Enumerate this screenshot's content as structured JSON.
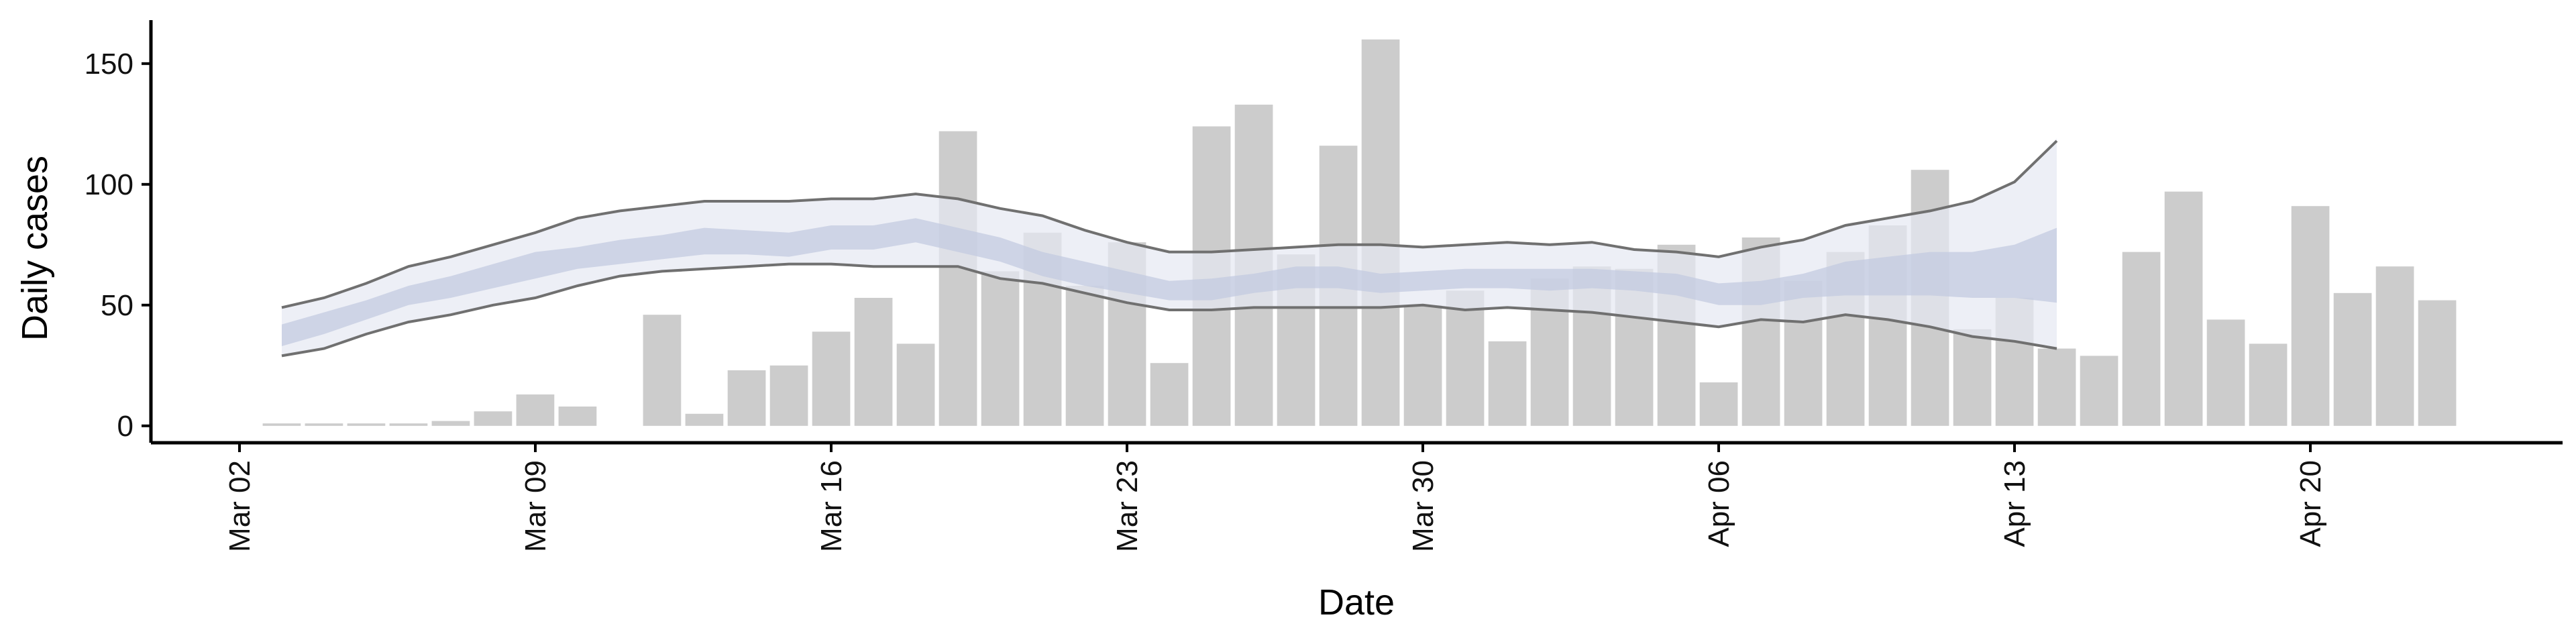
{
  "chart_data": {
    "type": "bar",
    "xlabel": "Date",
    "ylabel": "Daily cases",
    "ylim": [
      -7,
      168
    ],
    "x_ticks": [
      "2020-03-02",
      "2020-03-09",
      "2020-03-16",
      "2020-03-23",
      "2020-03-30",
      "2020-04-06",
      "2020-04-13",
      "2020-04-20"
    ],
    "x_tick_labels": [
      "Mar 02",
      "Mar 09",
      "Mar 16",
      "Mar 23",
      "Mar 30",
      "Apr 06",
      "Apr 13",
      "Apr 20"
    ],
    "y_ticks": [
      0,
      50,
      100,
      150
    ],
    "y_tick_labels": [
      "0",
      "50",
      "100",
      "150"
    ],
    "grid": false,
    "colors": {
      "bars": "#cccccc",
      "outer_band": "#e6e8f2",
      "inner_band": "#c3cbe0",
      "bound_lines": "#707070",
      "axis": "#000000"
    },
    "daily_cases": {
      "start_date": "2020-03-03",
      "values": [
        1,
        1,
        1,
        1,
        2,
        6,
        13,
        8,
        0,
        46,
        5,
        23,
        25,
        39,
        53,
        34,
        122,
        64,
        80,
        58,
        76,
        26,
        124,
        133,
        71,
        116,
        160,
        50,
        56,
        35,
        61,
        66,
        65,
        75,
        18,
        78,
        60,
        72,
        83,
        106,
        40,
        53,
        32,
        29,
        72,
        97,
        44,
        34,
        91,
        55,
        66,
        52
      ]
    },
    "estimate_bands": {
      "start_date": "2020-03-03",
      "upper": [
        49,
        53,
        59,
        66,
        70,
        75,
        80,
        86,
        89,
        91,
        93,
        93,
        93,
        94,
        94,
        96,
        94,
        90,
        87,
        81,
        76,
        72,
        72,
        73,
        74,
        75,
        75,
        74,
        75,
        76,
        75,
        76,
        73,
        72,
        70,
        74,
        77,
        83,
        86,
        89,
        93,
        101,
        118
      ],
      "lower": [
        29,
        32,
        38,
        43,
        46,
        50,
        53,
        58,
        62,
        64,
        65,
        66,
        67,
        67,
        66,
        66,
        66,
        61,
        59,
        55,
        51,
        48,
        48,
        49,
        49,
        49,
        49,
        50,
        48,
        49,
        48,
        47,
        45,
        43,
        41,
        44,
        43,
        46,
        44,
        41,
        37,
        35,
        32
      ],
      "outer_upper": [
        49,
        53,
        59,
        66,
        70,
        75,
        80,
        86,
        89,
        91,
        93,
        93,
        93,
        94,
        94,
        96,
        94,
        90,
        87,
        81,
        76,
        72,
        72,
        73,
        74,
        75,
        75,
        74,
        75,
        76,
        75,
        76,
        73,
        72,
        70,
        74,
        77,
        83,
        86,
        89,
        93,
        101,
        119
      ],
      "outer_lower": [
        29,
        32,
        38,
        43,
        46,
        50,
        53,
        58,
        62,
        64,
        65,
        66,
        67,
        67,
        66,
        66,
        66,
        61,
        59,
        55,
        51,
        48,
        48,
        49,
        49,
        49,
        49,
        50,
        48,
        49,
        48,
        47,
        45,
        43,
        41,
        44,
        43,
        46,
        44,
        41,
        37,
        35,
        32
      ],
      "inner_upper": [
        42,
        47,
        52,
        58,
        62,
        67,
        72,
        74,
        77,
        79,
        82,
        81,
        80,
        83,
        83,
        86,
        82,
        78,
        72,
        68,
        64,
        60,
        61,
        63,
        66,
        66,
        63,
        64,
        65,
        65,
        65,
        65,
        64,
        63,
        59,
        60,
        63,
        68,
        70,
        72,
        72,
        75,
        82
      ],
      "inner_lower": [
        33,
        38,
        44,
        50,
        53,
        57,
        61,
        65,
        67,
        69,
        71,
        71,
        70,
        73,
        73,
        76,
        72,
        68,
        62,
        58,
        55,
        52,
        52,
        55,
        57,
        57,
        55,
        56,
        57,
        57,
        56,
        57,
        56,
        54,
        50,
        50,
        53,
        54,
        54,
        54,
        53,
        53,
        51
      ]
    }
  }
}
